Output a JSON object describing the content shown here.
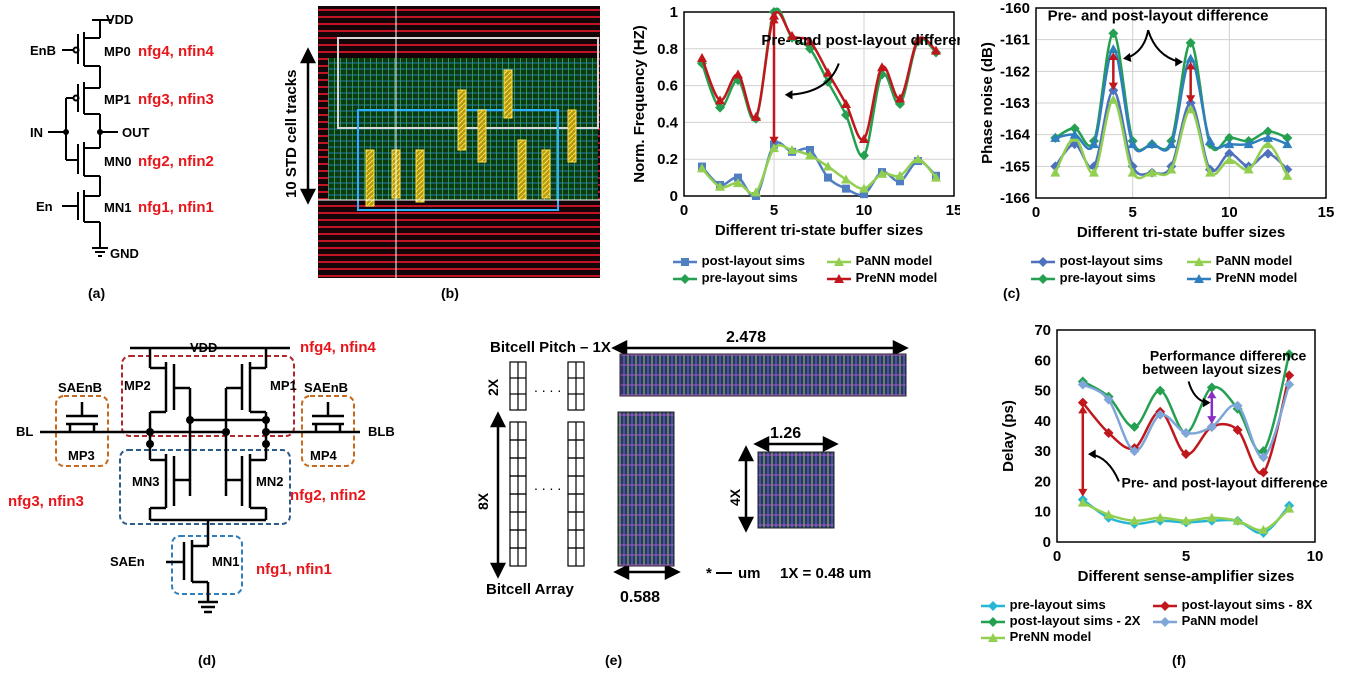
{
  "panel_labels": [
    "(a)",
    "(b)",
    "(c)",
    "(d)",
    "(e)",
    "(f)"
  ],
  "a": {
    "vdd": "VDD",
    "gnd": "GND",
    "in": "IN",
    "out": "OUT",
    "enb": "EnB",
    "en": "En",
    "transistors": [
      "MP0",
      "MP1",
      "MN0",
      "MN1"
    ],
    "sizes": [
      "nfg4, nfin4",
      "nfg3, nfin3",
      "nfg2, nfin2",
      "nfg1, nfin1"
    ]
  },
  "b": {
    "tracks_label": "10 STD cell tracks"
  },
  "d": {
    "vdd": "VDD",
    "bl": "BL",
    "blb": "BLB",
    "saenb_left": "SAEnB",
    "saenb_right": "SAEnB",
    "saen": "SAEn",
    "transistors": [
      "MP2",
      "MP1",
      "MP3",
      "MP4",
      "MN3",
      "MN2",
      "MN1"
    ],
    "sizes": [
      "nfg4, nfin4",
      "nfg3, nfin3",
      "nfg2, nfin2",
      "nfg1, nfin1"
    ]
  },
  "e": {
    "pitch_label": "Bitcell Pitch – 1X",
    "two_x": "2X",
    "eight_x": "8X",
    "four_x": "4X",
    "w_2x": "2.478",
    "w_8x": "0.588",
    "w_4x": "1.26",
    "star": "*",
    "array_label": "Bitcell Array",
    "unit_note": "um",
    "one_x": "1X = 0.48 um"
  },
  "chart_data": [
    {
      "id": "b-chart",
      "type": "line",
      "ylabel": "Norm. Frequency (HZ)",
      "xlabel": "Different tri-state buffer sizes",
      "xlim": [
        0,
        15
      ],
      "ylim": [
        0,
        1
      ],
      "xticks": [
        0,
        5,
        10,
        15
      ],
      "yticks": [
        0,
        0.2,
        0.4,
        0.6,
        0.8,
        1
      ],
      "ytick_labels": [
        "0",
        "0.2",
        "0.4",
        "0.6",
        "0.8",
        "1"
      ],
      "annotation": "Pre- and post-layout difference",
      "grid": true,
      "x": [
        1,
        2,
        3,
        4,
        5,
        6,
        7,
        8,
        9,
        10,
        11,
        12,
        13,
        14
      ],
      "series": [
        {
          "name": "post-layout sims",
          "color": "#4f7ec2",
          "marker": "square",
          "values": [
            0.16,
            0.06,
            0.1,
            0.0,
            0.28,
            0.24,
            0.25,
            0.1,
            0.04,
            0.01,
            0.13,
            0.08,
            0.19,
            0.11
          ]
        },
        {
          "name": "PaNN model",
          "color": "#92cf50",
          "marker": "triangle",
          "values": [
            0.15,
            0.05,
            0.07,
            0.02,
            0.26,
            0.25,
            0.22,
            0.16,
            0.09,
            0.04,
            0.12,
            0.11,
            0.2,
            0.1
          ]
        },
        {
          "name": "pre-layout sims",
          "color": "#25a050",
          "marker": "diamond",
          "values": [
            0.72,
            0.48,
            0.63,
            0.42,
            1.0,
            0.86,
            0.8,
            0.62,
            0.44,
            0.22,
            0.66,
            0.5,
            0.84,
            0.78
          ]
        },
        {
          "name": "PreNN model",
          "color": "#c0171d",
          "marker": "triangle",
          "values": [
            0.75,
            0.52,
            0.66,
            0.43,
            0.98,
            0.87,
            0.84,
            0.67,
            0.5,
            0.31,
            0.7,
            0.53,
            0.85,
            0.79
          ]
        }
      ]
    },
    {
      "id": "c-chart",
      "type": "line",
      "ylabel": "Phase noise (dB)",
      "xlabel": "Different tri-state buffer sizes",
      "xlim": [
        0,
        15
      ],
      "ylim": [
        -166,
        -160
      ],
      "xticks": [
        0,
        5,
        10,
        15
      ],
      "yticks": [
        -166,
        -165,
        -164,
        -163,
        -162,
        -161,
        -160
      ],
      "ytick_labels": [
        "-166",
        "-165",
        "-164",
        "-163",
        "-162",
        "-161",
        "-160"
      ],
      "annotation": "Pre- and post-layout difference",
      "grid": true,
      "x": [
        1,
        2,
        3,
        4,
        5,
        6,
        7,
        8,
        9,
        10,
        11,
        12,
        13
      ],
      "series": [
        {
          "name": "post-layout sims",
          "color": "#4e71be",
          "marker": "diamond",
          "values": [
            -165.0,
            -164.3,
            -165.0,
            -162.6,
            -165.0,
            -165.2,
            -165.0,
            -163.0,
            -165.1,
            -164.6,
            -165.0,
            -164.6,
            -165.1
          ]
        },
        {
          "name": "PaNN model",
          "color": "#92cf50",
          "marker": "triangle",
          "values": [
            -165.2,
            -164.1,
            -165.2,
            -162.9,
            -165.2,
            -165.2,
            -165.1,
            -163.2,
            -165.2,
            -164.8,
            -165.1,
            -164.3,
            -165.3
          ]
        },
        {
          "name": "pre-layout sims",
          "color": "#25a050",
          "marker": "diamond",
          "values": [
            -164.1,
            -163.8,
            -164.2,
            -160.8,
            -164.2,
            -164.3,
            -164.2,
            -161.1,
            -164.3,
            -164.1,
            -164.2,
            -163.9,
            -164.1
          ]
        },
        {
          "name": "PreNN model",
          "color": "#2f7fbf",
          "marker": "triangle",
          "values": [
            -164.1,
            -164.0,
            -164.3,
            -161.3,
            -164.3,
            -164.3,
            -164.3,
            -161.6,
            -164.2,
            -164.3,
            -164.3,
            -164.1,
            -164.3
          ]
        }
      ]
    },
    {
      "id": "f-chart",
      "type": "line",
      "ylabel": "Delay (ps)",
      "xlabel": "Different sense-amplifier sizes",
      "xlim": [
        0,
        10
      ],
      "ylim": [
        0,
        70
      ],
      "xticks": [
        0,
        5,
        10
      ],
      "yticks": [
        0,
        10,
        20,
        30,
        40,
        50,
        60,
        70
      ],
      "ytick_labels": [
        "0",
        "10",
        "20",
        "30",
        "40",
        "50",
        "60",
        "70"
      ],
      "annotations": [
        "Performance difference between layout sizes",
        "Pre- and post-layout difference"
      ],
      "grid": false,
      "x": [
        1,
        2,
        3,
        4,
        5,
        6,
        7,
        8,
        9
      ],
      "series": [
        {
          "name": "pre-layout sims",
          "color": "#27b7d6",
          "marker": "diamond",
          "values": [
            14,
            8,
            6,
            7,
            6.5,
            7,
            7,
            3,
            12
          ]
        },
        {
          "name": "post-layout sims - 8X",
          "color": "#c0171d",
          "marker": "diamond",
          "values": [
            46,
            36,
            31,
            43,
            29,
            38,
            37,
            23,
            55
          ]
        },
        {
          "name": "post-layout sims - 2X",
          "color": "#25a050",
          "marker": "diamond",
          "values": [
            53,
            48,
            38,
            50,
            36,
            51,
            44,
            30,
            62
          ]
        },
        {
          "name": "PaNN model",
          "color": "#7ea6d8",
          "marker": "diamond",
          "values": [
            52,
            47,
            30,
            42,
            36,
            38,
            45,
            28,
            52
          ]
        },
        {
          "name": "PreNN model",
          "color": "#92cf50",
          "marker": "triangle",
          "values": [
            13,
            9,
            7,
            8,
            7,
            8,
            7,
            4,
            11
          ]
        }
      ]
    }
  ]
}
